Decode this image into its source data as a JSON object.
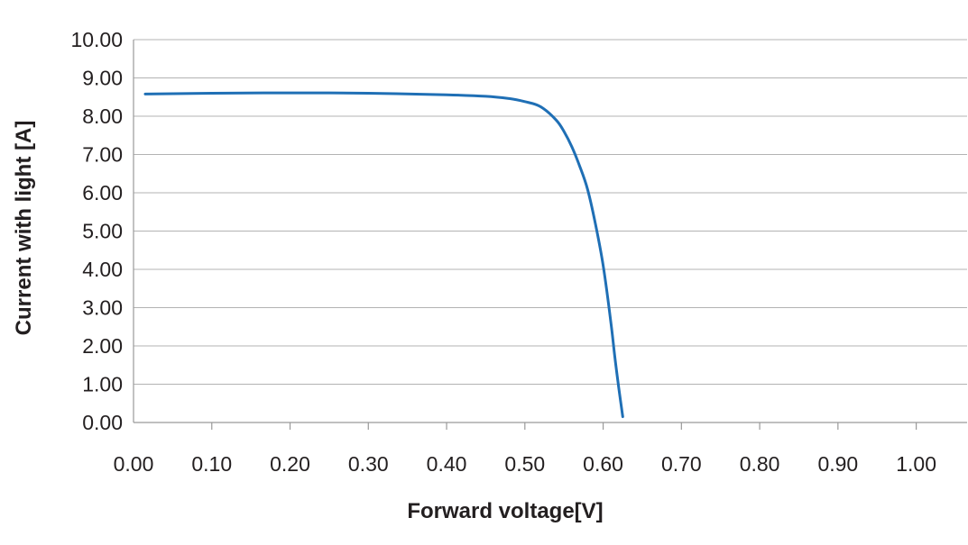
{
  "chart_data": {
    "type": "line",
    "title": "",
    "xlabel": "Forward voltage[V]",
    "ylabel": "Current with light [A]",
    "xlim": [
      0,
      1.0
    ],
    "ylim": [
      0,
      10
    ],
    "x_ticks": [
      "0.00",
      "0.10",
      "0.20",
      "0.30",
      "0.40",
      "0.50",
      "0.60",
      "0.70",
      "0.80",
      "0.90",
      "1.00"
    ],
    "y_ticks": [
      "0.00",
      "1.00",
      "2.00",
      "3.00",
      "4.00",
      "5.00",
      "6.00",
      "7.00",
      "8.00",
      "9.00",
      "10.00"
    ],
    "grid": "horizontal",
    "legend": "none",
    "series": [
      {
        "color": "#1f6fb5",
        "x": [
          0.015,
          0.1,
          0.2,
          0.3,
          0.4,
          0.45,
          0.48,
          0.5,
          0.52,
          0.54,
          0.55,
          0.56,
          0.57,
          0.58,
          0.59,
          0.6,
          0.61,
          0.615,
          0.62,
          0.625
        ],
        "y": [
          8.58,
          8.6,
          8.61,
          8.6,
          8.56,
          8.52,
          8.46,
          8.38,
          8.25,
          7.9,
          7.6,
          7.2,
          6.7,
          6.1,
          5.2,
          4.1,
          2.6,
          1.7,
          0.9,
          0.15
        ]
      }
    ]
  }
}
